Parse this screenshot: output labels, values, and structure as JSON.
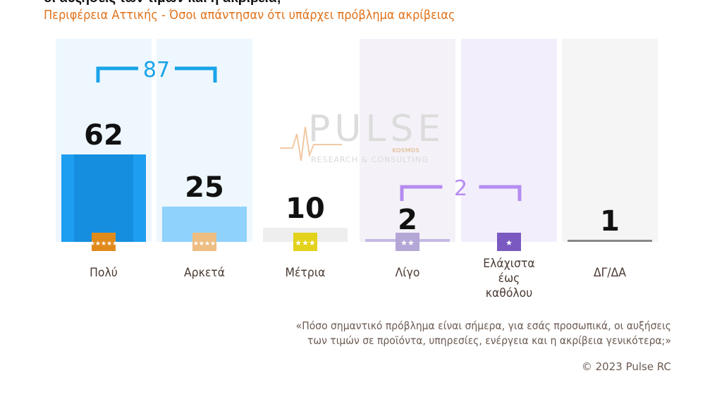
{
  "header": {
    "cut_title": "οι αυξήσεις των τιμών και η ακρίβεια;",
    "subtitle": "Περιφέρεια Αττικής - Όσοι απάντησαν ότι υπάρχει πρόβλημα ακρίβειας"
  },
  "chart_data": {
    "type": "bar",
    "categories": [
      "Πολύ",
      "Αρκετά",
      "Μέτρια",
      "Λίγο",
      "Ελάχιστα έως καθόλου",
      "ΔΓ/ΔΑ"
    ],
    "category_lines": [
      [
        "Πολύ"
      ],
      [
        "Αρκετά"
      ],
      [
        "Μέτρια"
      ],
      [
        "Λίγο"
      ],
      [
        "Ελάχιστα",
        "έως",
        "καθόλου"
      ],
      [
        "ΔΓ/ΔΑ"
      ]
    ],
    "values": [
      62,
      25,
      10,
      2,
      0,
      1
    ],
    "value_labels": [
      "62",
      "25",
      "10",
      "2",
      "",
      "1"
    ],
    "stars": [
      5,
      4,
      3,
      2,
      1,
      0
    ],
    "colors": [
      "#1e9ef0",
      "#8fd2fb",
      "#eeeeee",
      "#c6b9e6",
      "#b9a8e0",
      "#888888"
    ],
    "icon_colors": [
      "#e08a1c",
      "#edbd82",
      "#e2d21a",
      "#b4a7d6",
      "#7a5ac0",
      ""
    ],
    "background_colors": [
      "#eef7fe",
      "#eef7fe",
      "",
      "#f4f2f8",
      "#f3eefb",
      "#f5f5f5"
    ],
    "groups": [
      {
        "label": "87",
        "from": 0,
        "to": 1,
        "color": "#1aa3e8"
      },
      {
        "label": "2",
        "from": 3,
        "to": 4,
        "color": "#b58cf0"
      }
    ],
    "ylim": [
      0,
      100
    ],
    "grid": false,
    "legend": "none"
  },
  "question": {
    "line1": "«Πόσο σημαντικό πρόβλημα είναι σήμερα, για εσάς προσωπικά, οι αυξήσεις",
    "line2": "των τιμών σε προϊόντα, υπηρεσίες, ενέργεια και η ακρίβεια γενικότερα;»"
  },
  "footer": {
    "copyright": "© 2023 Pulse RC"
  },
  "watermark": {
    "brand": "PULSE",
    "sub_brand": "KOSMOS",
    "tagline": "RESEARCH & CONSULTING"
  }
}
